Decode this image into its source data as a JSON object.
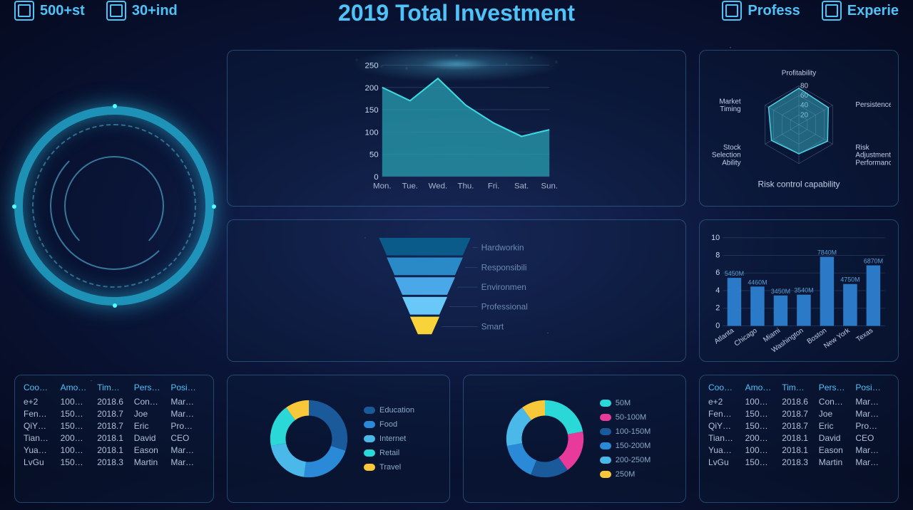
{
  "title": "2019 Total Investment",
  "top_stats": [
    {
      "value": "500+st"
    },
    {
      "value": "30+ind"
    },
    {
      "value": "Profess"
    },
    {
      "value": "Experie"
    }
  ],
  "area_chart": {
    "type": "area",
    "ylim": [
      0,
      250
    ],
    "ytick_step": 50,
    "categories": [
      "Mon.",
      "Tue.",
      "Wed.",
      "Thu.",
      "Fri.",
      "Sat.",
      "Sun."
    ],
    "values": [
      200,
      170,
      220,
      160,
      120,
      90,
      105
    ],
    "fill_color": "#2aa8b8",
    "stroke_color": "#3dd8e0",
    "grid_color": "rgba(120,160,200,0.2)",
    "background": "transparent"
  },
  "funnel": {
    "type": "funnel",
    "items": [
      {
        "label": "Hardworkin",
        "color": "#0a5a8a"
      },
      {
        "label": "Responsibili",
        "color": "#2a8ac8"
      },
      {
        "label": "Environmen",
        "color": "#4aa8e8"
      },
      {
        "label": "Professional",
        "color": "#6ac8f8"
      },
      {
        "label": "Smart",
        "color": "#f8d43a"
      }
    ]
  },
  "radar": {
    "type": "radar",
    "title": "Risk control capability",
    "axes": [
      "Profitability",
      "Persistence",
      "Risk Adjustment Performance",
      "Risk control capability",
      "Stock Selection Ability",
      "Market Timing"
    ],
    "ticks": [
      20,
      40,
      60,
      80
    ],
    "values": [
      75,
      70,
      68,
      60,
      65,
      72
    ],
    "fill_color": "rgba(60,180,200,0.5)",
    "stroke_color": "#4dd0e1",
    "grid_color": "rgba(140,170,210,0.4)"
  },
  "bar_chart": {
    "type": "bar",
    "ylim": [
      0,
      10
    ],
    "ytick_step": 2,
    "categories": [
      "Atlanta",
      "Chicago",
      "Miami",
      "Washington",
      "Boston",
      "New York",
      "Texas"
    ],
    "values": [
      5.45,
      4.46,
      3.45,
      3.54,
      7.84,
      4.75,
      6.87
    ],
    "value_labels": [
      "5450M",
      "4460M",
      "3450M",
      "3540M",
      "7840M",
      "4750M",
      "6870M"
    ],
    "bar_color": "#2a7ac8",
    "grid_color": "rgba(120,160,200,0.2)"
  },
  "table": {
    "columns": [
      "Coo…",
      "Amo…",
      "Tim…",
      "Pers…",
      "Posi…"
    ],
    "rows": [
      [
        "e+2",
        "100…",
        "2018.6",
        "Con…",
        "Mar…"
      ],
      [
        "Fen…",
        "150…",
        "2018.7",
        "Joe",
        "Mar…"
      ],
      [
        "QiY…",
        "150…",
        "2018.7",
        "Eric",
        "Pro…"
      ],
      [
        "Tian…",
        "200…",
        "2018.1",
        "David",
        "CEO"
      ],
      [
        "Yua…",
        "100…",
        "2018.1",
        "Eason",
        "Mar…"
      ],
      [
        "LvGu",
        "150…",
        "2018.3",
        "Martin",
        "Mar…"
      ]
    ]
  },
  "donut1": {
    "type": "donut",
    "slices": [
      {
        "label": "Education",
        "value": 30,
        "color": "#1a5a9a"
      },
      {
        "label": "Food",
        "value": 22,
        "color": "#2a8ad8"
      },
      {
        "label": "Internet",
        "value": 20,
        "color": "#4ab8e8"
      },
      {
        "label": "Retail",
        "value": 18,
        "color": "#2ad8d8"
      },
      {
        "label": "Travel",
        "value": 10,
        "color": "#f8c83a"
      }
    ]
  },
  "donut2": {
    "type": "donut",
    "slices": [
      {
        "label": "50M",
        "value": 22,
        "color": "#2ad8d8"
      },
      {
        "label": "50-100M",
        "value": 18,
        "color": "#e83a9a"
      },
      {
        "label": "100-150M",
        "value": 16,
        "color": "#1a5a9a"
      },
      {
        "label": "150-200M",
        "value": 16,
        "color": "#2a8ad8"
      },
      {
        "label": "200-250M",
        "value": 18,
        "color": "#4ab8e8"
      },
      {
        "label": "250M",
        "value": 10,
        "color": "#f8c83a"
      }
    ]
  }
}
